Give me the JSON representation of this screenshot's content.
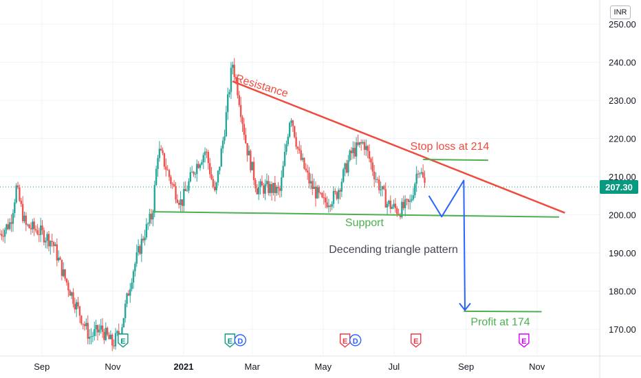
{
  "currency": "INR",
  "last_price": "207.30",
  "colors": {
    "up": "#26a69a",
    "down": "#ef5350",
    "resistance": "#f04a3c",
    "support": "#4caf50",
    "projection": "#2962ff",
    "event_red": "#f23645",
    "event_green": "#089981",
    "event_blue": "#2962ff",
    "event_purple": "#d500f9",
    "axis_text": "#131722"
  },
  "chart_data": {
    "type": "candlestick",
    "title": "",
    "ylabel": "INR",
    "ylim": [
      163,
      255
    ],
    "y_ticks": [
      "250.00",
      "240.00",
      "230.00",
      "220.00",
      "210.00",
      "200.00",
      "190.00",
      "180.00",
      "170.00"
    ],
    "x_ticks": [
      "Sep",
      "Nov",
      "2021",
      "Mar",
      "May",
      "Jul",
      "Sep",
      "Nov"
    ],
    "x_range": [
      "2020-07-27",
      "2021-12-25"
    ],
    "price_path": [
      [
        "2020-07-27",
        195
      ],
      [
        "2020-08-05",
        198
      ],
      [
        "2020-08-10",
        207
      ],
      [
        "2020-08-18",
        197
      ],
      [
        "2020-08-28",
        196
      ],
      [
        "2020-09-10",
        193
      ],
      [
        "2020-09-20",
        184
      ],
      [
        "2020-10-01",
        176
      ],
      [
        "2020-10-12",
        168
      ],
      [
        "2020-10-22",
        170
      ],
      [
        "2020-11-01",
        166
      ],
      [
        "2020-11-08",
        170
      ],
      [
        "2020-11-18",
        185
      ],
      [
        "2020-11-28",
        195
      ],
      [
        "2020-12-05",
        200
      ],
      [
        "2020-12-10",
        217
      ],
      [
        "2020-12-15",
        214
      ],
      [
        "2020-12-22",
        208
      ],
      [
        "2020-12-30",
        203
      ],
      [
        "2021-01-10",
        212
      ],
      [
        "2021-01-20",
        217
      ],
      [
        "2021-01-28",
        205
      ],
      [
        "2021-02-05",
        222
      ],
      [
        "2021-02-12",
        240
      ],
      [
        "2021-02-17",
        232
      ],
      [
        "2021-02-24",
        218
      ],
      [
        "2021-03-05",
        207
      ],
      [
        "2021-03-15",
        207
      ],
      [
        "2021-03-25",
        206
      ],
      [
        "2021-04-03",
        227
      ],
      [
        "2021-04-10",
        216
      ],
      [
        "2021-04-20",
        208
      ],
      [
        "2021-05-01",
        203
      ],
      [
        "2021-05-12",
        205
      ],
      [
        "2021-05-25",
        216
      ],
      [
        "2021-06-05",
        219
      ],
      [
        "2021-06-15",
        210
      ],
      [
        "2021-06-25",
        203
      ],
      [
        "2021-07-05",
        201
      ],
      [
        "2021-07-15",
        203
      ],
      [
        "2021-07-22",
        213
      ],
      [
        "2021-07-28",
        207.3
      ]
    ],
    "lines": [
      {
        "name": "Resistance",
        "points": [
          [
            "2021-02-12",
            235
          ],
          [
            "2021-11-25",
            200.5
          ]
        ]
      },
      {
        "name": "Support",
        "points": [
          [
            "2020-12-05",
            200.8
          ],
          [
            "2021-11-20",
            199.4
          ]
        ]
      },
      {
        "name": "Stop loss at 214",
        "points": [
          [
            "2021-07-26",
            214.5
          ],
          [
            "2021-09-20",
            214.3
          ]
        ]
      },
      {
        "name": "Profit at 174",
        "points": [
          [
            "2021-08-30",
            174.7
          ],
          [
            "2021-11-05",
            174.6
          ]
        ]
      },
      {
        "name": "projection",
        "points": [
          [
            "2021-07-31",
            205
          ],
          [
            "2021-08-11",
            199.5
          ],
          [
            "2021-08-30",
            209
          ],
          [
            "2021-08-31",
            175
          ]
        ]
      }
    ],
    "annotations": [
      {
        "text": "Resistance",
        "x": "2021-02-14",
        "y": 235
      },
      {
        "text": "Stop loss at 214",
        "x": "2021-07-15",
        "y": 217
      },
      {
        "text": "Support",
        "x": "2021-05-20",
        "y": 197
      },
      {
        "text": "Decending triangle pattern",
        "x": "2021-05-06",
        "y": 190
      },
      {
        "text": "Profit at 174",
        "x": "2021-09-05",
        "y": 171
      }
    ],
    "events": [
      {
        "date": "2020-11-14",
        "labels": [
          "E"
        ],
        "color": "green"
      },
      {
        "date": "2021-02-14",
        "labels": [
          "E",
          "D"
        ],
        "color": "green"
      },
      {
        "date": "2021-05-24",
        "labels": [
          "E",
          "D"
        ],
        "color": "red"
      },
      {
        "date": "2021-07-24",
        "labels": [
          "E"
        ],
        "color": "red"
      },
      {
        "date": "2021-10-25",
        "labels": [
          "E"
        ],
        "color": "purple"
      }
    ]
  }
}
